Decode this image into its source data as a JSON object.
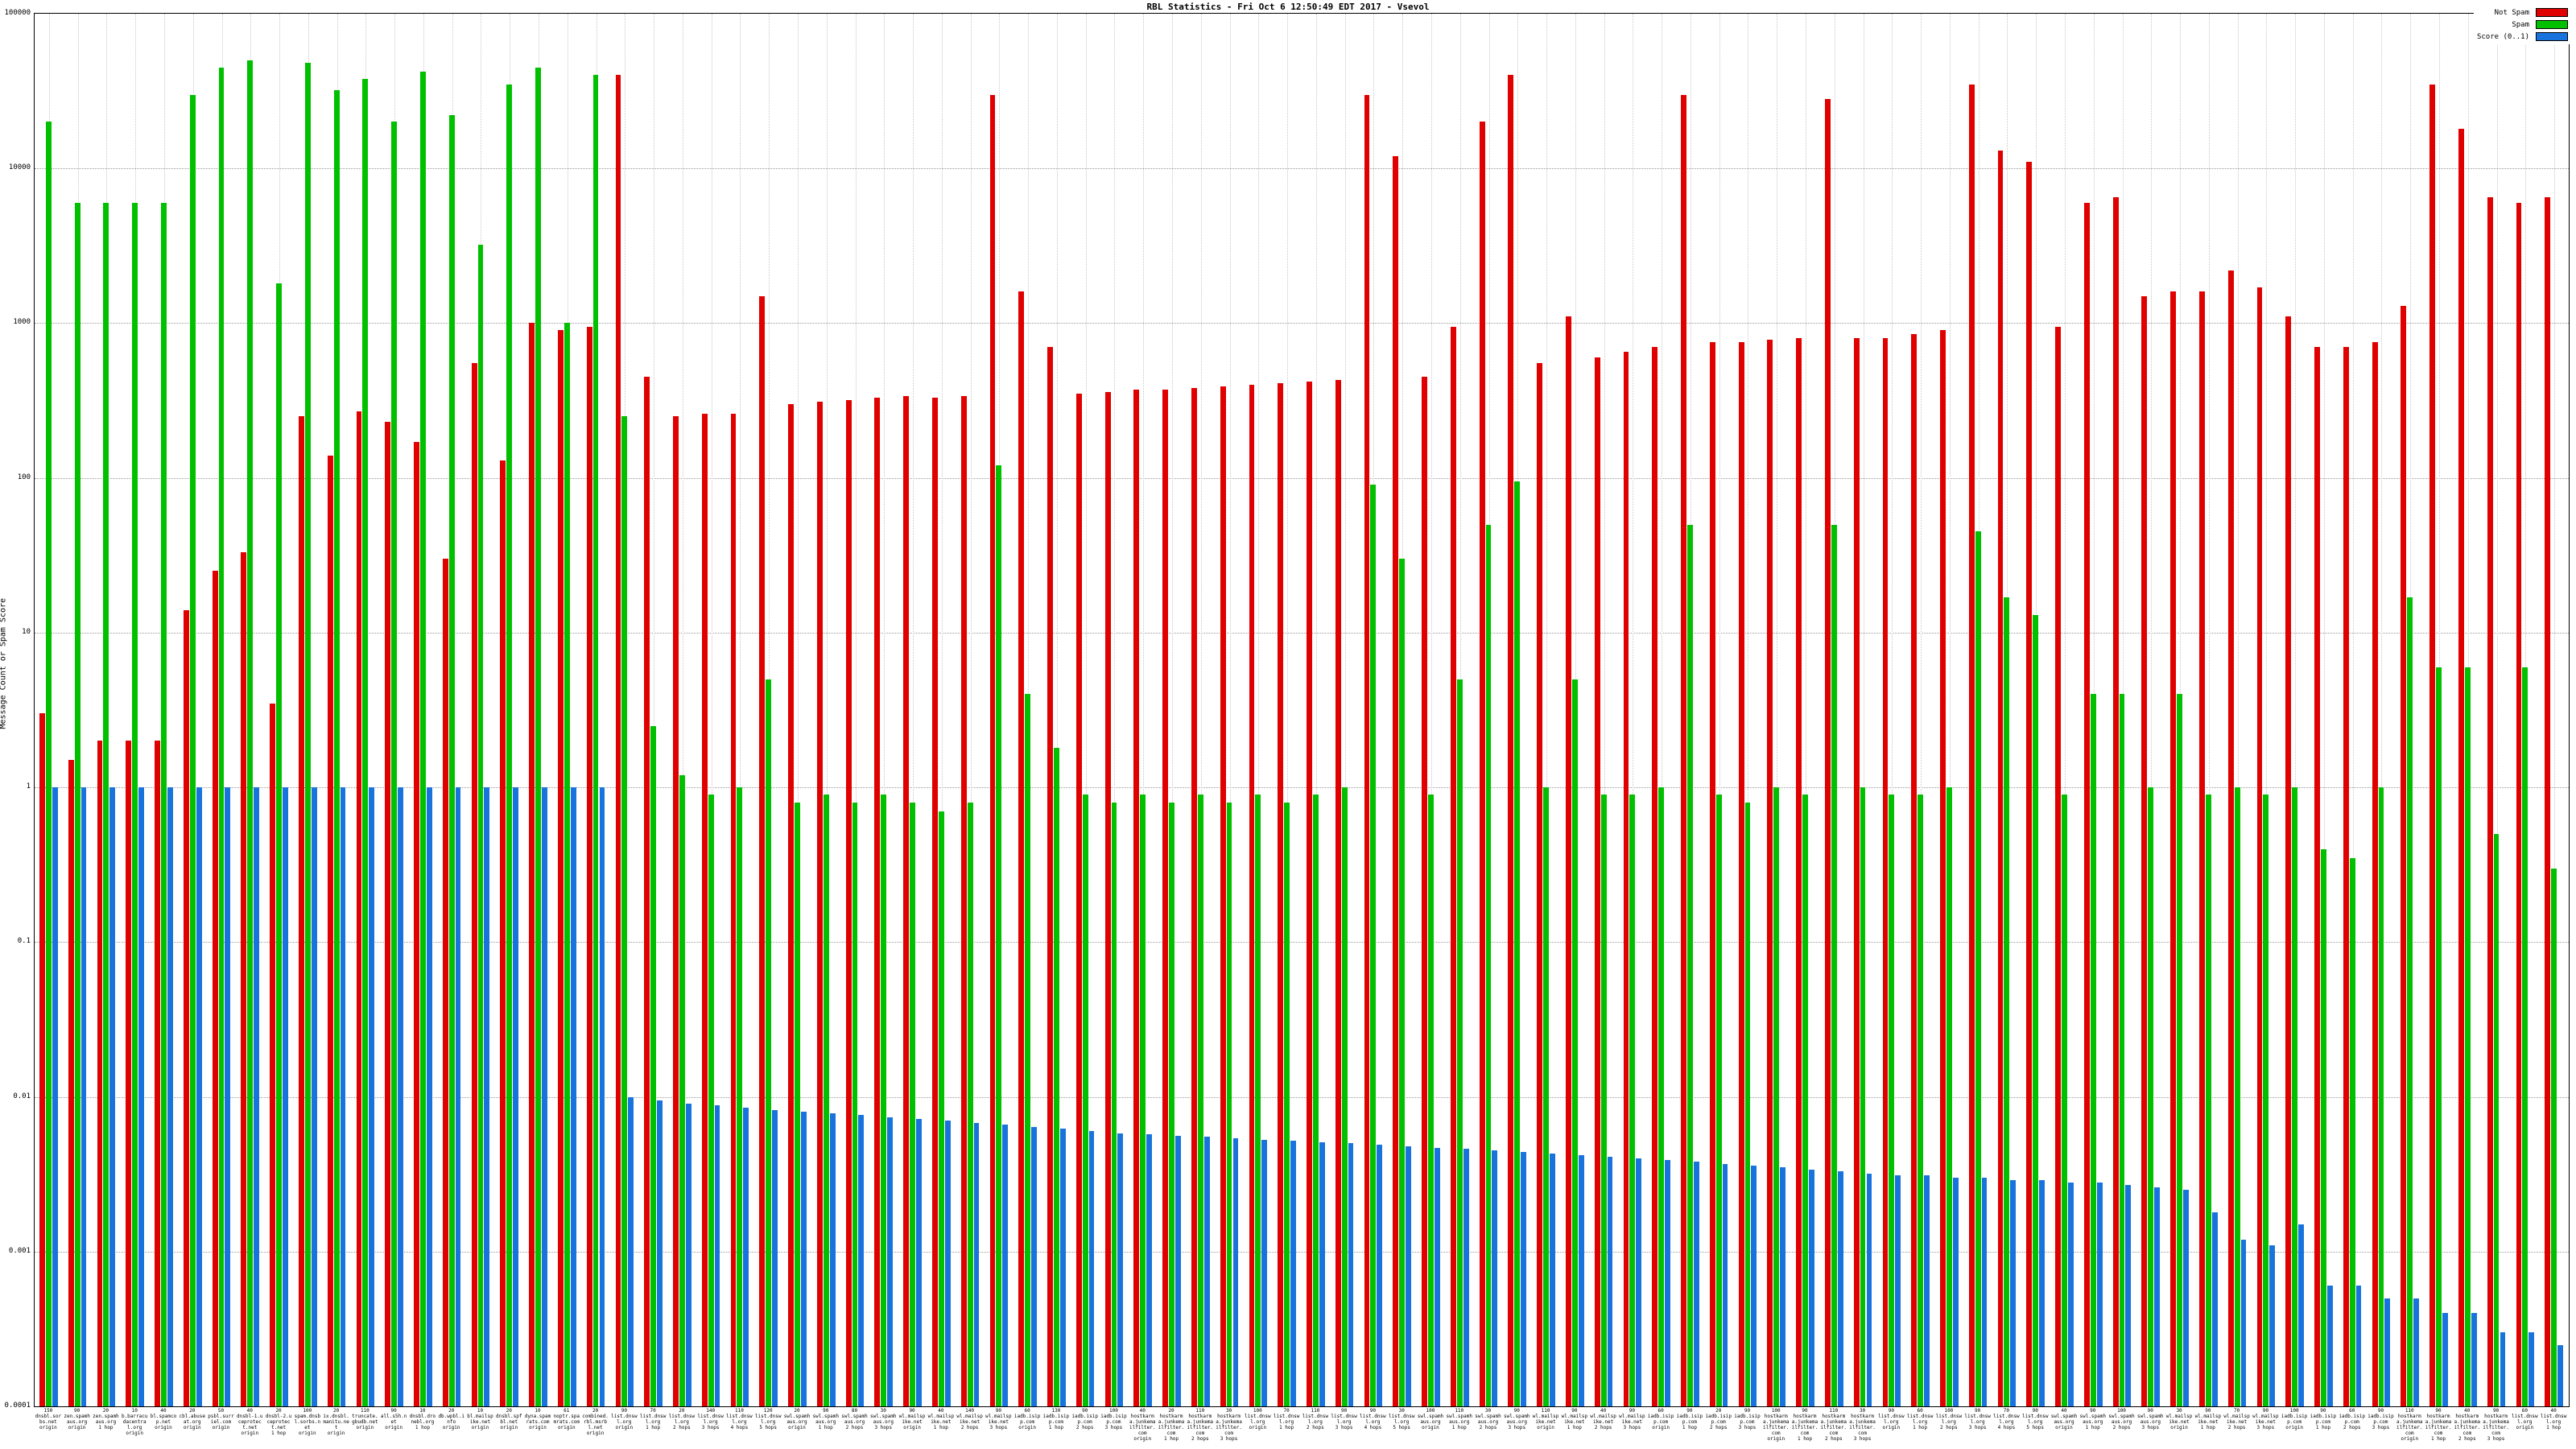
{
  "chart_data": {
    "type": "bar",
    "title": "RBL Statistics - Fri Oct  6 12:50:49 EDT 2017 - Vsevol",
    "ylabel": "Message Count or Spam Score",
    "ylog": true,
    "ylim": [
      0.0001,
      100000
    ],
    "yticks": [
      "100000",
      "10000",
      "1000",
      "100",
      "10",
      "1",
      "0.1",
      "0.01",
      "0.001",
      "0.0001"
    ],
    "grid": true,
    "legend_position": "top-right",
    "legend": [
      {
        "name": "Not Spam",
        "color": "#e00000"
      },
      {
        "name": "Spam",
        "color": "#00c000"
      },
      {
        "name": "Score (0..1)",
        "color": "#1874dc"
      }
    ],
    "categories": [
      [
        "150",
        "dnsbl.sorbs.net",
        "origin"
      ],
      [
        "90",
        "zen.spamhaus.org",
        "origin"
      ],
      [
        "20",
        "zen.spamhaus.org",
        "1 hop"
      ],
      [
        "10",
        "b.barracudacentral.org",
        "origin"
      ],
      [
        "40",
        "bl.spamcop.net",
        "origin"
      ],
      [
        "20",
        "cbl.abuseat.org",
        "origin"
      ],
      [
        "50",
        "psbl.surriel.com",
        "origin"
      ],
      [
        "40",
        "dnsbl-1.uceprotect.net",
        "origin"
      ],
      [
        "20",
        "dnsbl-2.uceprotect.net",
        "1 hop"
      ],
      [
        "100",
        "spam.dnsbl.sorbs.net",
        "origin"
      ],
      [
        "20",
        "ix.dnsbl.manitu.net",
        "origin"
      ],
      [
        "110",
        "truncate.gbudb.net",
        "origin"
      ],
      [
        "90",
        "all.s5h.net",
        "origin"
      ],
      [
        "10",
        "dnsbl.dronebl.org",
        "1 hop"
      ],
      [
        "20",
        "db.wpbl.info",
        "origin"
      ],
      [
        "10",
        "bl.mailspike.net",
        "origin"
      ],
      [
        "20",
        "dnsbl.spfbl.net",
        "origin"
      ],
      [
        "10",
        "dyna.spamrats.com",
        "origin"
      ],
      [
        "61",
        "noptr.spamrats.com",
        "origin"
      ],
      [
        "20",
        "combined.rbl.msrbl.net",
        "origin"
      ],
      [
        "90",
        "list.dnswl.org",
        "origin"
      ],
      [
        "70",
        "list.dnswl.org",
        "1 hop"
      ],
      [
        "20",
        "list.dnswl.org",
        "2 hops"
      ],
      [
        "140",
        "list.dnswl.org",
        "3 hops"
      ],
      [
        "110",
        "list.dnswl.org",
        "4 hops"
      ],
      [
        "120",
        "list.dnswl.org",
        "5 hops"
      ],
      [
        "20",
        "swl.spamhaus.org",
        "origin"
      ],
      [
        "90",
        "swl.spamhaus.org",
        "1 hop"
      ],
      [
        "80",
        "swl.spamhaus.org",
        "2 hops"
      ],
      [
        "30",
        "swl.spamhaus.org",
        "3 hops"
      ],
      [
        "90",
        "wl.mailspike.net",
        "origin"
      ],
      [
        "40",
        "wl.mailspike.net",
        "1 hop"
      ],
      [
        "140",
        "wl.mailspike.net",
        "2 hops"
      ],
      [
        "90",
        "wl.mailspike.net",
        "3 hops"
      ],
      [
        "60",
        "iadb.isipp.com",
        "origin"
      ],
      [
        "130",
        "iadb.isipp.com",
        "1 hop"
      ],
      [
        "90",
        "iadb.isipp.com",
        "2 hops"
      ],
      [
        "100",
        "iadb.isipp.com",
        "3 hops"
      ],
      [
        "40",
        "hostkarma.junkemailfilter.com",
        "origin"
      ],
      [
        "20",
        "hostkarma.junkemailfilter.com",
        "1 hop"
      ],
      [
        "110",
        "hostkarma.junkemailfilter.com",
        "2 hops"
      ],
      [
        "30",
        "hostkarma.junkemailfilter.com",
        "3 hops"
      ],
      [
        "100",
        "list.dnswl.org",
        "origin"
      ],
      [
        "70",
        "list.dnswl.org",
        "1 hop"
      ],
      [
        "110",
        "list.dnswl.org",
        "2 hops"
      ],
      [
        "90",
        "list.dnswl.org",
        "3 hops"
      ],
      [
        "90",
        "list.dnswl.org",
        "4 hops"
      ],
      [
        "30",
        "list.dnswl.org",
        "5 hops"
      ],
      [
        "100",
        "swl.spamhaus.org",
        "origin"
      ],
      [
        "110",
        "swl.spamhaus.org",
        "1 hop"
      ],
      [
        "30",
        "swl.spamhaus.org",
        "2 hops"
      ],
      [
        "90",
        "swl.spamhaus.org",
        "3 hops"
      ],
      [
        "110",
        "wl.mailspike.net",
        "origin"
      ],
      [
        "90",
        "wl.mailspike.net",
        "1 hop"
      ],
      [
        "40",
        "wl.mailspike.net",
        "2 hops"
      ],
      [
        "90",
        "wl.mailspike.net",
        "3 hops"
      ],
      [
        "60",
        "iadb.isipp.com",
        "origin"
      ],
      [
        "90",
        "iadb.isipp.com",
        "1 hop"
      ],
      [
        "20",
        "iadb.isipp.com",
        "2 hops"
      ],
      [
        "90",
        "iadb.isipp.com",
        "3 hops"
      ],
      [
        "100",
        "hostkarma.junkemailfilter.com",
        "origin"
      ],
      [
        "90",
        "hostkarma.junkemailfilter.com",
        "1 hop"
      ],
      [
        "110",
        "hostkarma.junkemailfilter.com",
        "2 hops"
      ],
      [
        "30",
        "hostkarma.junkemailfilter.com",
        "3 hops"
      ],
      [
        "90",
        "list.dnswl.org",
        "origin"
      ],
      [
        "60",
        "list.dnswl.org",
        "1 hop"
      ],
      [
        "100",
        "list.dnswl.org",
        "2 hops"
      ],
      [
        "90",
        "list.dnswl.org",
        "3 hops"
      ],
      [
        "70",
        "list.dnswl.org",
        "4 hops"
      ],
      [
        "90",
        "list.dnswl.org",
        "5 hops"
      ],
      [
        "40",
        "swl.spamhaus.org",
        "origin"
      ],
      [
        "90",
        "swl.spamhaus.org",
        "1 hop"
      ],
      [
        "100",
        "swl.spamhaus.org",
        "2 hops"
      ],
      [
        "90",
        "swl.spamhaus.org",
        "3 hops"
      ],
      [
        "30",
        "wl.mailspike.net",
        "origin"
      ],
      [
        "90",
        "wl.mailspike.net",
        "1 hop"
      ],
      [
        "70",
        "wl.mailspike.net",
        "2 hops"
      ],
      [
        "90",
        "wl.mailspike.net",
        "3 hops"
      ],
      [
        "100",
        "iadb.isipp.com",
        "origin"
      ],
      [
        "90",
        "iadb.isipp.com",
        "1 hop"
      ],
      [
        "60",
        "iadb.isipp.com",
        "2 hops"
      ],
      [
        "90",
        "iadb.isipp.com",
        "3 hops"
      ],
      [
        "110",
        "hostkarma.junkemailfilter.com",
        "origin"
      ],
      [
        "90",
        "hostkarma.junkemailfilter.com",
        "1 hop"
      ],
      [
        "40",
        "hostkarma.junkemailfilter.com",
        "2 hops"
      ],
      [
        "90",
        "hostkarma.junkemailfilter.com",
        "3 hops"
      ],
      [
        "60",
        "list.dnswl.org",
        "origin"
      ],
      [
        "40",
        "list.dnswl.org",
        "1 hop"
      ]
    ],
    "series": [
      {
        "name": "Not Spam",
        "color": "#e00000",
        "values": [
          3,
          1.5,
          2,
          2,
          2,
          14,
          25,
          33,
          3.5,
          250,
          140,
          270,
          230,
          170,
          30,
          550,
          130,
          1000,
          900,
          950,
          40000,
          450,
          250,
          260,
          260,
          1500,
          300,
          310,
          320,
          330,
          340,
          330,
          340,
          30000,
          1600,
          700,
          350,
          360,
          370,
          370,
          380,
          390,
          400,
          410,
          420,
          430,
          30000,
          12000,
          450,
          950,
          20000,
          40000,
          550,
          1100,
          600,
          650,
          700,
          30000,
          750,
          750,
          780,
          800,
          28000,
          800,
          800,
          850,
          900,
          35000,
          13000,
          11000,
          950,
          6000,
          6500,
          1500,
          1600,
          1600,
          2200,
          1700,
          1100,
          700,
          700,
          750,
          1300,
          35000,
          18000,
          6500,
          6000,
          6500
        ]
      },
      {
        "name": "Spam",
        "color": "#00c000",
        "values": [
          20000,
          6000,
          6000,
          6000,
          6000,
          30000,
          45000,
          50000,
          1800,
          48000,
          32000,
          38000,
          20000,
          42000,
          22000,
          3200,
          35000,
          45000,
          1000,
          40000,
          250,
          2.5,
          1.2,
          0.9,
          1,
          5,
          0.8,
          0.9,
          0.8,
          0.9,
          0.8,
          0.7,
          0.8,
          120,
          4,
          1.8,
          0.9,
          0.8,
          0.9,
          0.8,
          0.9,
          0.8,
          0.9,
          0.8,
          0.9,
          1,
          90,
          30,
          0.9,
          5,
          50,
          95,
          1,
          5,
          0.9,
          0.9,
          1,
          50,
          0.9,
          0.8,
          1,
          0.9,
          50,
          1,
          0.9,
          0.9,
          1,
          45,
          17,
          13,
          0.9,
          4,
          4,
          1,
          4,
          0.9,
          1,
          0.9,
          1,
          0.4,
          0.35,
          1,
          17,
          6,
          6,
          0.5,
          6,
          0.3
        ]
      },
      {
        "name": "Score (0..1)",
        "color": "#1874dc",
        "values": [
          1,
          1,
          1,
          1,
          1,
          1,
          1,
          1,
          1,
          1,
          1,
          1,
          1,
          1,
          1,
          1,
          1,
          1,
          1,
          1,
          0.01,
          0.0095,
          0.009,
          0.0088,
          0.0085,
          0.0082,
          0.008,
          0.0078,
          0.0076,
          0.0074,
          0.0072,
          0.007,
          0.0068,
          0.0066,
          0.0064,
          0.0062,
          0.006,
          0.0058,
          0.0057,
          0.0056,
          0.0055,
          0.0054,
          0.0053,
          0.0052,
          0.0051,
          0.005,
          0.0049,
          0.0048,
          0.0047,
          0.0046,
          0.0045,
          0.0044,
          0.0043,
          0.0042,
          0.0041,
          0.004,
          0.0039,
          0.0038,
          0.0037,
          0.0036,
          0.0035,
          0.0034,
          0.0033,
          0.0032,
          0.0031,
          0.0031,
          0.003,
          0.003,
          0.0029,
          0.0029,
          0.0028,
          0.0028,
          0.0027,
          0.0026,
          0.0025,
          0.0018,
          0.0012,
          0.0011,
          0.0015,
          0.0006,
          0.0006,
          0.0005,
          0.0005,
          0.0004,
          0.0004,
          0.0003,
          0.0003,
          0.00025
        ]
      }
    ]
  }
}
